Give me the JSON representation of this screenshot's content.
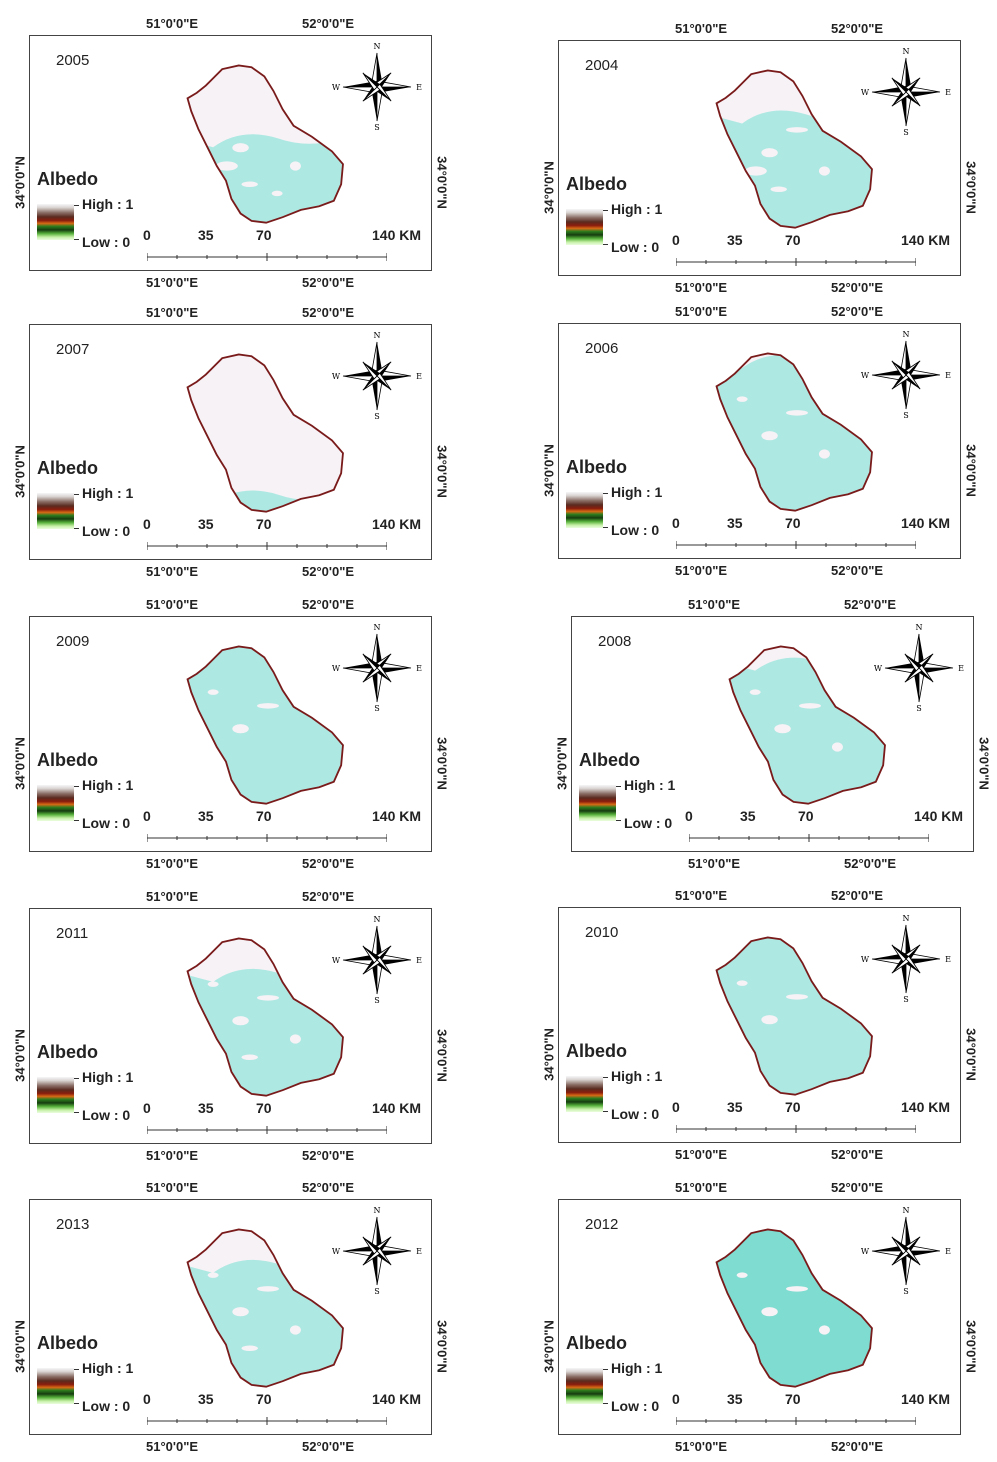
{
  "labels": {
    "lon_west": "51°0'0\"E",
    "lon_east": "52°0'0\"E",
    "lat": "34°0'0\"N",
    "legend_title": "Albedo",
    "legend_high": "High : 1",
    "legend_low": "Low : 0",
    "scale_0": "0",
    "scale_35": "35",
    "scale_70": "70",
    "scale_140": "140 KM",
    "north": "N",
    "south": "S",
    "east": "E",
    "west": "W"
  },
  "colors": {
    "boundary": "#7a1b1b",
    "snow": "#f7f2f6",
    "ground": "#aee8e2",
    "ground_dark": "#7fdcd0"
  },
  "panels": [
    {
      "year": "2005",
      "snow_fraction": 0.55
    },
    {
      "year": "2004",
      "snow_fraction": 0.4
    },
    {
      "year": "2007",
      "snow_fraction": 0.9
    },
    {
      "year": "2006",
      "snow_fraction": 0.2
    },
    {
      "year": "2009",
      "snow_fraction": 0.05
    },
    {
      "year": "2008",
      "snow_fraction": 0.25
    },
    {
      "year": "2011",
      "snow_fraction": 0.35
    },
    {
      "year": "2010",
      "snow_fraction": 0.05
    },
    {
      "year": "2013",
      "snow_fraction": 0.35
    },
    {
      "year": "2012",
      "snow_fraction": 0.15
    }
  ]
}
